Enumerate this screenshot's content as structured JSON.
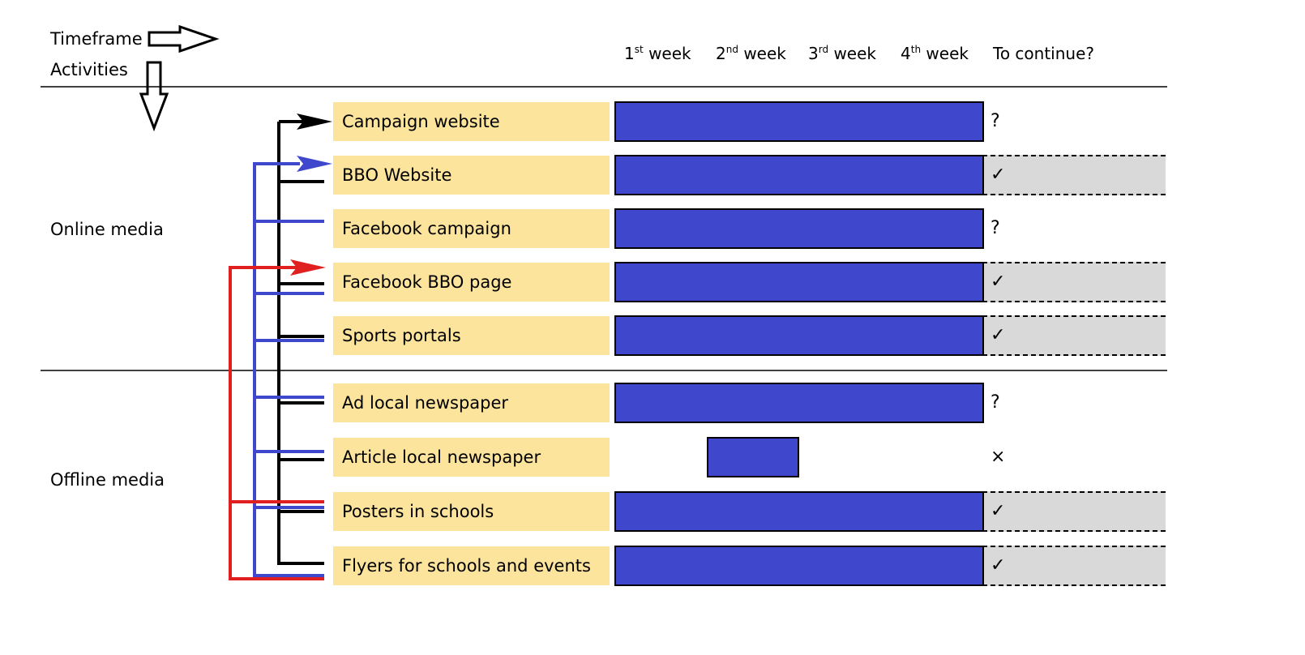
{
  "header": {
    "timeframe_label": "Timeframe",
    "activities_label": "Activities",
    "weeks": [
      {
        "num": "1",
        "suffix": "st",
        "word": "week"
      },
      {
        "num": "2",
        "suffix": "nd",
        "word": "week"
      },
      {
        "num": "3",
        "suffix": "rd",
        "word": "week"
      },
      {
        "num": "4",
        "suffix": "th",
        "word": "week"
      }
    ],
    "continue_label": "To continue?"
  },
  "sections": {
    "online": "Online media",
    "offline": "Offline media"
  },
  "activities": [
    {
      "label": "Campaign website",
      "start_week": 1,
      "end_week": 4,
      "status": "?",
      "highlight": false
    },
    {
      "label": "BBO Website",
      "start_week": 1,
      "end_week": 4,
      "status": "✓",
      "highlight": true
    },
    {
      "label": "Facebook campaign",
      "start_week": 1,
      "end_week": 4,
      "status": "?",
      "highlight": false
    },
    {
      "label": "Facebook BBO page",
      "start_week": 1,
      "end_week": 4,
      "status": "✓",
      "highlight": true
    },
    {
      "label": "Sports portals",
      "start_week": 1,
      "end_week": 4,
      "status": "✓",
      "highlight": true
    },
    {
      "label": "Ad local newspaper",
      "start_week": 1,
      "end_week": 4,
      "status": "?",
      "highlight": false
    },
    {
      "label": "Article local newspaper",
      "start_week": 2,
      "end_week": 2,
      "status": "×",
      "highlight": false
    },
    {
      "label": "Posters in schools",
      "start_week": 1,
      "end_week": 4,
      "status": "✓",
      "highlight": true
    },
    {
      "label": "Flyers for schools and events",
      "start_week": 1,
      "end_week": 4,
      "status": "✓",
      "highlight": true
    }
  ],
  "colors": {
    "bar": "#3f48cc",
    "label_bg": "#fce49d",
    "status_bg": "#d9d9d9",
    "black_links": "#000000",
    "blue_links": "#3f48cc",
    "red_links": "#e02020"
  }
}
